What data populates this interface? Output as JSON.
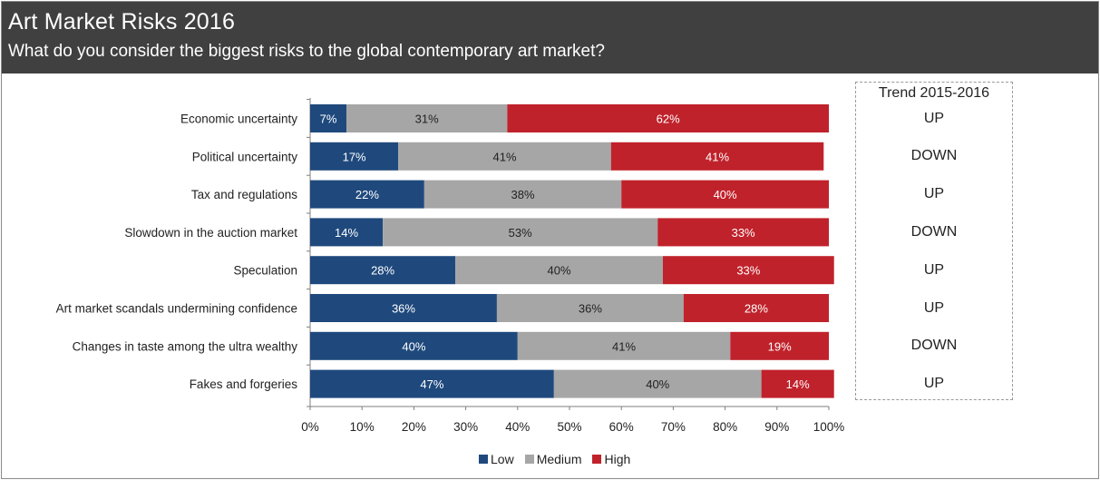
{
  "title": "Art Market Risks 2016",
  "subtitle": "What do you consider the biggest risks to the global contemporary art market?",
  "trend": {
    "title": "Trend 2015-2016",
    "values": [
      "UP",
      "DOWN",
      "UP",
      "DOWN",
      "UP",
      "UP",
      "DOWN",
      "UP"
    ]
  },
  "colors": {
    "low": "#1f497d",
    "medium": "#a6a6a6",
    "high": "#c0222b"
  },
  "chart_data": {
    "type": "bar",
    "orientation": "horizontal",
    "stacked": true,
    "categories": [
      "Economic uncertainty",
      "Political uncertainty",
      "Tax and regulations",
      "Slowdown in the auction market",
      "Speculation",
      "Art market scandals undermining confidence",
      "Changes in taste among the ultra wealthy",
      "Fakes and forgeries"
    ],
    "series": [
      {
        "name": "Low",
        "values": [
          7,
          17,
          22,
          14,
          28,
          36,
          40,
          47
        ]
      },
      {
        "name": "Medium",
        "values": [
          31,
          41,
          38,
          53,
          40,
          36,
          41,
          40
        ]
      },
      {
        "name": "High",
        "values": [
          62,
          41,
          40,
          33,
          33,
          28,
          19,
          14
        ]
      }
    ],
    "xlim": [
      0,
      100
    ],
    "xticks": [
      "0%",
      "10%",
      "20%",
      "30%",
      "40%",
      "50%",
      "60%",
      "70%",
      "80%",
      "90%",
      "100%"
    ],
    "data_label_suffix": "%",
    "legend_position": "bottom",
    "grid": false
  }
}
